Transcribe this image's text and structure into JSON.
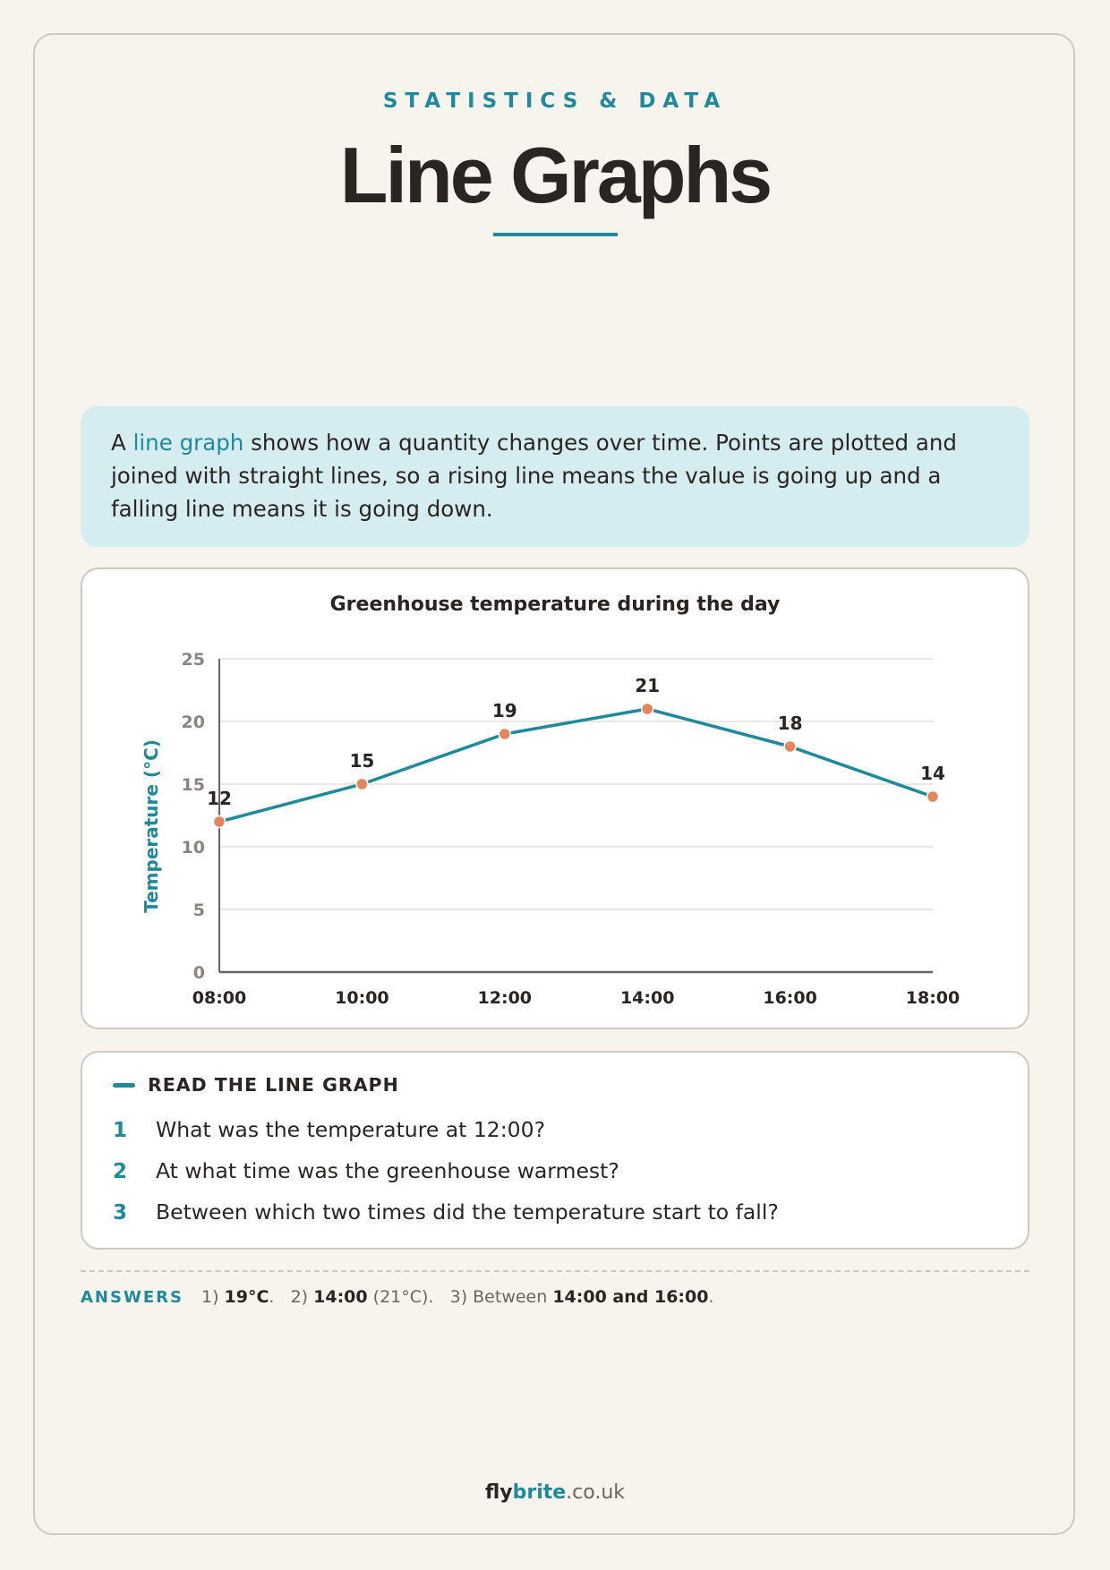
{
  "header": {
    "eyebrow": "STATISTICS & DATA",
    "title": "Line Graphs"
  },
  "intro": {
    "before": "A ",
    "term": "line graph",
    "after": " shows how a quantity changes over time. Points are plotted and joined with straight lines, so a rising line means the value is going up and a falling line means it is going down."
  },
  "chart_data": {
    "type": "line",
    "title": "Greenhouse temperature during the day",
    "xlabel": "",
    "ylabel": "Temperature (°C)",
    "categories": [
      "08:00",
      "10:00",
      "12:00",
      "14:00",
      "16:00",
      "18:00"
    ],
    "series": [
      {
        "values": [
          12,
          15,
          19,
          21,
          18,
          14
        ]
      }
    ],
    "ylim": [
      0,
      25
    ],
    "yticks": [
      0,
      5,
      10,
      15,
      20,
      25
    ],
    "grid": true,
    "data_labels": true,
    "line_color": "#1f8a9b",
    "point_color": "#e3865b"
  },
  "questions": {
    "heading": "READ THE LINE GRAPH",
    "items": [
      {
        "num": "1",
        "text": "What was the temperature at 12:00?"
      },
      {
        "num": "2",
        "text": "At what time was the greenhouse warmest?"
      },
      {
        "num": "3",
        "text": "Between which two times did the temperature start to fall?"
      }
    ]
  },
  "answers": {
    "label": "ANSWERS",
    "a1_prefix": "1) ",
    "a1_value": "19°C",
    "a1_suffix": ".",
    "a2_prefix": "2) ",
    "a2_value": "14:00",
    "a2_suffix": " (21°C).",
    "a3_prefix": "3) Between ",
    "a3_value": "14:00 and 16:00",
    "a3_suffix": "."
  },
  "footer": {
    "part1": "fly",
    "part2": "brite",
    "part3": ".co.uk"
  },
  "colors": {
    "accent": "#1f8a9b",
    "point": "#e3865b",
    "background": "#f7f4ee",
    "intro_bg": "#d5edf0"
  }
}
